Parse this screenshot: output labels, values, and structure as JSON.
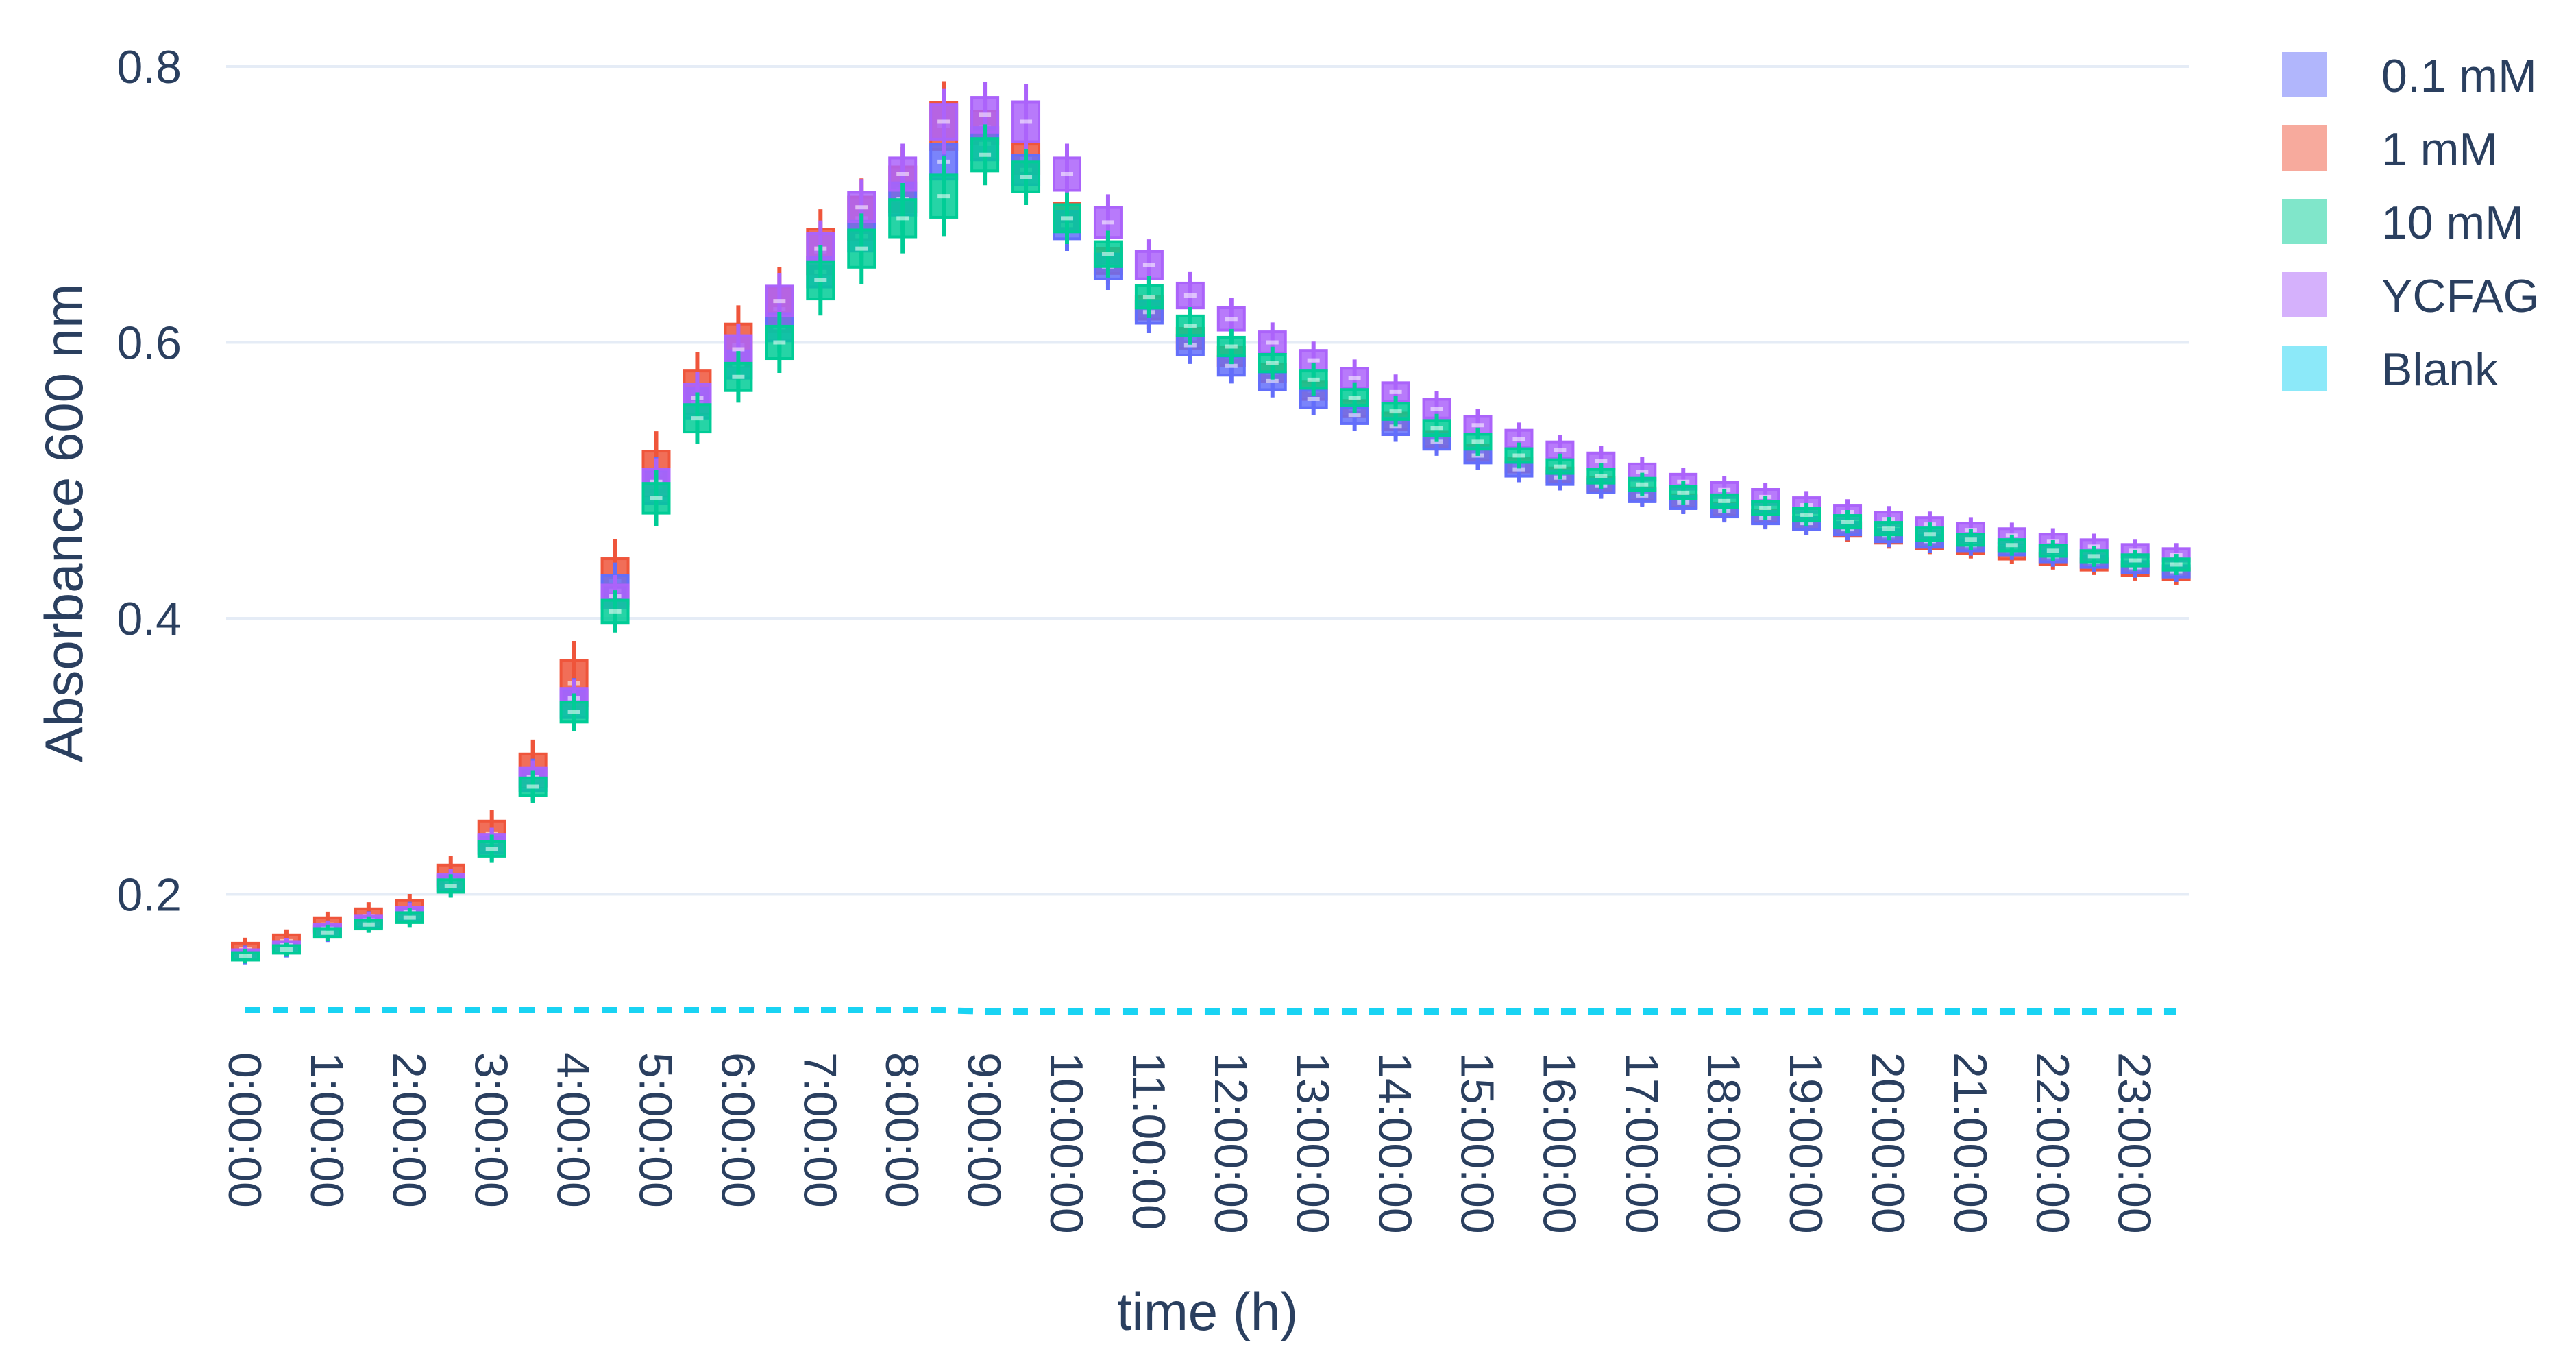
{
  "chart_data": {
    "type": "box",
    "title": "",
    "xlabel": "time (h)",
    "ylabel": "Absorbance 600 nm",
    "ylim": [
      0.075,
      0.8
    ],
    "yticks": [
      0.2,
      0.4,
      0.6,
      0.8
    ],
    "ytick_labels": [
      "0.2",
      "0.4",
      "0.6",
      "0.8"
    ],
    "grid": "horizontal",
    "legend_position": "top-right",
    "x_tick_labels": [
      "0:00:00",
      "1:00:00",
      "2:00:00",
      "3:00:00",
      "4:00:00",
      "5:00:00",
      "6:00:00",
      "7:00:00",
      "8:00:00",
      "9:00:00",
      "10:00:00",
      "11:00:00",
      "12:00:00",
      "13:00:00",
      "14:00:00",
      "15:00:00",
      "16:00:00",
      "17:00:00",
      "18:00:00",
      "19:00:00",
      "20:00:00",
      "21:00:00",
      "22:00:00",
      "23:00:00"
    ],
    "x_hours": [
      0,
      0.5,
      1,
      1.5,
      2,
      2.5,
      3,
      3.5,
      4,
      4.5,
      5,
      5.5,
      6,
      6.5,
      7,
      7.5,
      8,
      8.5,
      9,
      9.5,
      10,
      10.5,
      11,
      11.5,
      12,
      12.5,
      13,
      13.5,
      14,
      14.5,
      15,
      15.5,
      16,
      16.5,
      17,
      17.5,
      18,
      18.5,
      19,
      19.5,
      20,
      20.5,
      21,
      21.5,
      22,
      22.5,
      23,
      23.5
    ],
    "series": [
      {
        "name": "0.1 mM",
        "color": "#636efa",
        "legend_color": "#b1b6fc",
        "median": [
          0.156,
          0.161,
          0.173,
          0.18,
          0.186,
          0.208,
          0.236,
          0.283,
          0.338,
          0.42,
          0.495,
          0.556,
          0.584,
          0.611,
          0.651,
          0.677,
          0.704,
          0.731,
          0.744,
          0.725,
          0.685,
          0.655,
          0.622,
          0.598,
          0.583,
          0.572,
          0.559,
          0.547,
          0.539,
          0.528,
          0.518,
          0.508,
          0.502,
          0.496,
          0.489,
          0.484,
          0.478,
          0.473,
          0.469,
          0.465,
          0.46,
          0.456,
          0.453,
          0.45,
          0.445,
          0.441,
          0.437,
          0.434
        ],
        "spread": [
          0.008,
          0.008,
          0.009,
          0.009,
          0.01,
          0.012,
          0.014,
          0.018,
          0.022,
          0.024,
          0.026,
          0.024,
          0.022,
          0.022,
          0.024,
          0.024,
          0.026,
          0.028,
          0.026,
          0.024,
          0.022,
          0.02,
          0.018,
          0.016,
          0.015,
          0.014,
          0.014,
          0.013,
          0.013,
          0.012,
          0.012,
          0.011,
          0.011,
          0.011,
          0.01,
          0.01,
          0.01,
          0.01,
          0.01,
          0.01,
          0.01,
          0.01,
          0.009,
          0.009,
          0.009,
          0.009,
          0.009,
          0.009
        ]
      },
      {
        "name": "1 mM",
        "color": "#ef553b",
        "legend_color": "#f7aa9d",
        "median": [
          0.16,
          0.166,
          0.178,
          0.184,
          0.19,
          0.214,
          0.244,
          0.29,
          0.353,
          0.427,
          0.505,
          0.564,
          0.598,
          0.624,
          0.666,
          0.69,
          0.711,
          0.757,
          0.756,
          0.733,
          0.691,
          0.659,
          0.625,
          0.603,
          0.59,
          0.578,
          0.565,
          0.552,
          0.543,
          0.53,
          0.52,
          0.511,
          0.504,
          0.497,
          0.49,
          0.485,
          0.479,
          0.474,
          0.469,
          0.464,
          0.459,
          0.455,
          0.451,
          0.447,
          0.443,
          0.439,
          0.435,
          0.432
        ],
        "spread": [
          0.01,
          0.01,
          0.011,
          0.012,
          0.012,
          0.016,
          0.02,
          0.026,
          0.036,
          0.036,
          0.036,
          0.034,
          0.034,
          0.036,
          0.036,
          0.034,
          0.036,
          0.038,
          0.026,
          0.024,
          0.022,
          0.02,
          0.018,
          0.016,
          0.015,
          0.014,
          0.014,
          0.013,
          0.013,
          0.012,
          0.012,
          0.011,
          0.011,
          0.011,
          0.01,
          0.01,
          0.01,
          0.01,
          0.01,
          0.01,
          0.01,
          0.01,
          0.009,
          0.009,
          0.009,
          0.009,
          0.009,
          0.009
        ]
      },
      {
        "name": "10 mM",
        "color": "#00cc96",
        "legend_color": "#80e6ca",
        "median": [
          0.155,
          0.16,
          0.172,
          0.178,
          0.183,
          0.206,
          0.233,
          0.278,
          0.332,
          0.405,
          0.487,
          0.545,
          0.575,
          0.6,
          0.645,
          0.668,
          0.69,
          0.706,
          0.736,
          0.72,
          0.69,
          0.664,
          0.633,
          0.612,
          0.597,
          0.585,
          0.573,
          0.56,
          0.55,
          0.538,
          0.528,
          0.518,
          0.51,
          0.503,
          0.497,
          0.491,
          0.485,
          0.48,
          0.475,
          0.47,
          0.465,
          0.461,
          0.457,
          0.453,
          0.449,
          0.445,
          0.442,
          0.439
        ],
        "spread": [
          0.006,
          0.006,
          0.007,
          0.007,
          0.008,
          0.01,
          0.012,
          0.014,
          0.016,
          0.018,
          0.024,
          0.022,
          0.022,
          0.026,
          0.03,
          0.03,
          0.03,
          0.034,
          0.026,
          0.024,
          0.022,
          0.02,
          0.018,
          0.016,
          0.015,
          0.014,
          0.014,
          0.013,
          0.013,
          0.012,
          0.012,
          0.011,
          0.011,
          0.011,
          0.01,
          0.01,
          0.01,
          0.01,
          0.01,
          0.01,
          0.01,
          0.01,
          0.009,
          0.009,
          0.009,
          0.009,
          0.009,
          0.009
        ]
      },
      {
        "name": "YCFAG",
        "color": "#ab63fa",
        "legend_color": "#d5b1fc",
        "median": [
          0.157,
          0.163,
          0.175,
          0.181,
          0.187,
          0.21,
          0.238,
          0.285,
          0.342,
          0.416,
          0.499,
          0.56,
          0.595,
          0.63,
          0.668,
          0.698,
          0.722,
          0.76,
          0.765,
          0.76,
          0.722,
          0.687,
          0.656,
          0.634,
          0.617,
          0.6,
          0.587,
          0.574,
          0.564,
          0.552,
          0.54,
          0.53,
          0.522,
          0.514,
          0.506,
          0.499,
          0.493,
          0.488,
          0.482,
          0.477,
          0.472,
          0.468,
          0.464,
          0.46,
          0.456,
          0.452,
          0.449,
          0.446
        ],
        "spread": [
          0.006,
          0.006,
          0.007,
          0.007,
          0.008,
          0.01,
          0.012,
          0.014,
          0.016,
          0.018,
          0.02,
          0.022,
          0.022,
          0.024,
          0.024,
          0.024,
          0.026,
          0.028,
          0.028,
          0.032,
          0.026,
          0.024,
          0.022,
          0.02,
          0.018,
          0.017,
          0.016,
          0.016,
          0.015,
          0.015,
          0.014,
          0.014,
          0.013,
          0.013,
          0.013,
          0.012,
          0.012,
          0.012,
          0.012,
          0.011,
          0.011,
          0.011,
          0.011,
          0.011,
          0.011,
          0.011,
          0.01,
          0.01
        ]
      },
      {
        "name": "Blank",
        "color": "#19d3f3",
        "legend_color": "#8ce9f9",
        "median": [
          0.116,
          0.116,
          0.116,
          0.116,
          0.116,
          0.116,
          0.116,
          0.116,
          0.116,
          0.116,
          0.116,
          0.116,
          0.116,
          0.116,
          0.116,
          0.116,
          0.116,
          0.116,
          0.115,
          0.115,
          0.115,
          0.115,
          0.115,
          0.115,
          0.115,
          0.115,
          0.115,
          0.115,
          0.115,
          0.115,
          0.115,
          0.115,
          0.115,
          0.115,
          0.115,
          0.115,
          0.115,
          0.115,
          0.115,
          0.115,
          0.115,
          0.115,
          0.115,
          0.115,
          0.115,
          0.115,
          0.115,
          0.115
        ]
      }
    ]
  }
}
